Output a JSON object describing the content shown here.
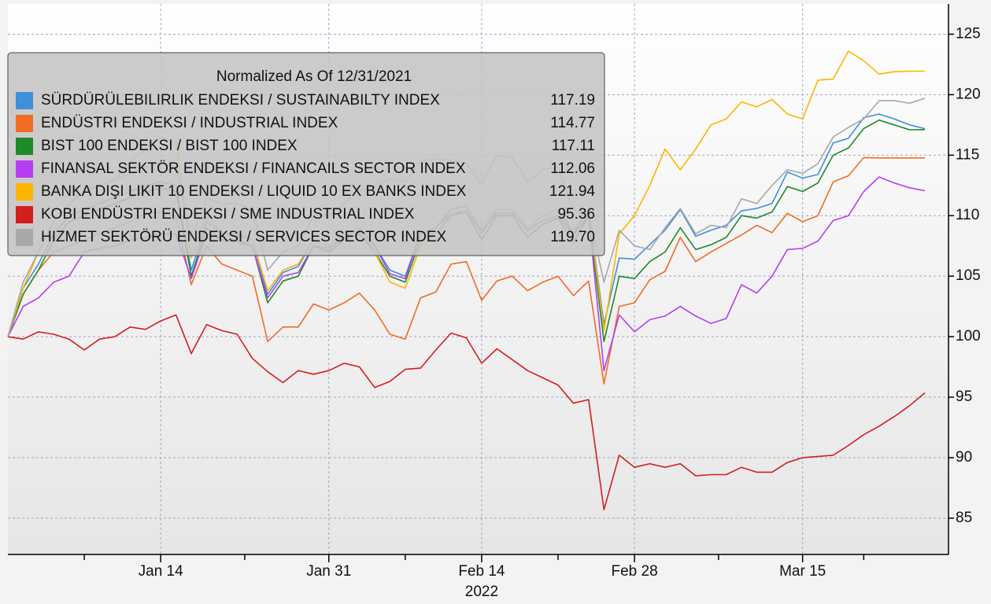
{
  "chart_data": {
    "type": "line",
    "legend_title": "Normalized As Of 12/31/2021",
    "xlabel": "2022",
    "categories": [
      null,
      null,
      null,
      null,
      null,
      null,
      null,
      null,
      null,
      null,
      "Jan 14",
      null,
      null,
      null,
      null,
      null,
      null,
      null,
      null,
      null,
      null,
      "Jan 31",
      null,
      null,
      null,
      null,
      null,
      null,
      null,
      null,
      null,
      "Feb 14",
      null,
      null,
      null,
      null,
      null,
      null,
      null,
      null,
      null,
      "Feb 28",
      null,
      null,
      null,
      null,
      null,
      null,
      null,
      null,
      null,
      null,
      "Mar 15",
      null,
      null,
      null,
      null,
      null,
      null,
      null,
      null
    ],
    "ylim": [
      82,
      127.5
    ],
    "yticks": [
      85,
      90,
      95,
      100,
      105,
      110,
      115,
      120,
      125
    ],
    "grid": true,
    "legend": "upper left",
    "series": [
      {
        "name": "SÜRDÜRÜLEBILIRLIK ENDEKSI / SUSTAINABILTY INDEX",
        "legend_value": "117.19",
        "color": "#3f8fdc",
        "values": [
          100,
          104,
          106,
          108.5,
          110,
          110.5,
          111,
          111.5,
          112,
          112.5,
          112.8,
          112.5,
          105.5,
          109.5,
          108.5,
          108.5,
          108,
          103.5,
          105.3,
          105.8,
          108,
          107.5,
          108.5,
          109,
          107.5,
          105.5,
          105,
          108.5,
          109,
          110.5,
          110.8,
          108.5,
          110.5,
          110.5,
          109,
          110,
          110.5,
          108.5,
          110.5,
          101,
          106.5,
          106.4,
          107.6,
          108.8,
          110.5,
          108.3,
          108.8,
          109.2,
          110.4,
          110.6,
          111,
          113.6,
          113.1,
          113.4,
          116,
          116.4,
          118.1,
          118.4,
          118,
          117.5,
          117.19
        ]
      },
      {
        "name": "ENDÜSTRI ENDEKSI / INDUSTRIAL INDEX",
        "legend_value": "114.77",
        "color": "#f26c22",
        "values": [
          100,
          103.5,
          105.5,
          107,
          107.5,
          108,
          108.5,
          109,
          109.5,
          110.2,
          110.3,
          110,
          104.3,
          107.5,
          106,
          105.5,
          105,
          99.6,
          100.8,
          100.8,
          102.7,
          102.2,
          102.8,
          103.6,
          102.2,
          100.2,
          99.8,
          103.2,
          103.7,
          106,
          106.2,
          103,
          104.6,
          105,
          103.8,
          104.5,
          105,
          103.4,
          104.6,
          96.1,
          102.5,
          102.8,
          104.7,
          105.4,
          108.2,
          106.2,
          107,
          107.7,
          108.4,
          109.2,
          108.6,
          110.2,
          109.5,
          110,
          112.8,
          113.3,
          114.8,
          114.77,
          114.77,
          114.77,
          114.77
        ]
      },
      {
        "name": "BIST 100 ENDEKSI / BIST 100 INDEX",
        "legend_value": "117.11",
        "color": "#1f8a2a",
        "values": [
          100,
          103.5,
          105.5,
          108,
          109.5,
          110,
          110.5,
          111,
          111.5,
          112,
          112.3,
          112,
          105,
          109,
          108,
          108,
          107.5,
          102.8,
          104.6,
          105,
          107.5,
          107,
          108,
          108.5,
          107,
          105,
          104.5,
          108,
          108.5,
          110,
          110.3,
          108,
          110,
          110,
          108.2,
          109.3,
          109.8,
          107.8,
          110,
          99.6,
          105,
          104.8,
          106.2,
          107,
          109,
          107.2,
          107.6,
          108.2,
          110,
          109.8,
          110.3,
          112.4,
          112,
          112.7,
          115,
          115.6,
          117.2,
          117.9,
          117.5,
          117.1,
          117.11
        ]
      },
      {
        "name": "FINANSAL SEKTÖR ENDEKSI / FINANCAILS SECTOR INDEX",
        "legend_value": "112.06",
        "color": "#b53ff0",
        "values": [
          100,
          102.5,
          103.2,
          104.5,
          105,
          107,
          107.3,
          107.5,
          108,
          108.2,
          108.5,
          108.5,
          104.8,
          108.5,
          108,
          107.8,
          107.5,
          103.2,
          105,
          105.3,
          107.5,
          107.3,
          108.2,
          108.8,
          107.5,
          105.2,
          104.8,
          108.5,
          109,
          110.2,
          110.3,
          108.8,
          110.2,
          110.2,
          108.8,
          109.6,
          110,
          108.4,
          110,
          97.2,
          101.8,
          100.4,
          101.4,
          101.7,
          102.5,
          101.7,
          101.1,
          101.5,
          104.3,
          103.6,
          105,
          107.2,
          107.3,
          107.9,
          109.6,
          110,
          112,
          113.2,
          112.7,
          112.3,
          112.06
        ]
      },
      {
        "name": "BANKA DIŞI LIKIT 10 ENDEKSI / LIQUID 10 EX BANKS INDEX",
        "legend_value": "121.94",
        "color": "#ffb400",
        "values": [
          100,
          104,
          107,
          109.5,
          111,
          112,
          112.5,
          113,
          114.5,
          115.5,
          116.5,
          116,
          106.5,
          110,
          108.5,
          108.3,
          108,
          103.8,
          105.5,
          106,
          108,
          107.5,
          108.5,
          109,
          107,
          104.5,
          104,
          107.5,
          108.5,
          110.2,
          110.5,
          109.2,
          110.5,
          110.5,
          109,
          110,
          110.5,
          108.8,
          110.5,
          100.5,
          108.5,
          110,
          112.5,
          115.5,
          113.8,
          115.5,
          117.5,
          118,
          119.4,
          119,
          119.6,
          118.4,
          118,
          121.2,
          121.3,
          123.6,
          122.8,
          121.7,
          121.9,
          121.94,
          121.94
        ]
      },
      {
        "name": "KOBI ENDÜSTRI ENDEKSI / SME INDUSTRIAL INDEX",
        "legend_value": "95.36",
        "color": "#d41e1e",
        "values": [
          100,
          99.8,
          100.4,
          100.2,
          99.8,
          98.9,
          99.8,
          100,
          100.8,
          100.6,
          101.3,
          101.8,
          98.6,
          101,
          100.5,
          100.2,
          98.2,
          97.1,
          96.2,
          97.2,
          96.9,
          97.2,
          97.8,
          97.5,
          95.8,
          96.3,
          97.3,
          97.4,
          98.9,
          100.3,
          99.9,
          97.8,
          99,
          98.1,
          97.2,
          96.6,
          96,
          94.5,
          94.8,
          85.7,
          90.2,
          89.2,
          89.5,
          89.2,
          89.5,
          88.5,
          88.6,
          88.6,
          89.2,
          88.8,
          88.8,
          89.6,
          90,
          90.1,
          90.2,
          91,
          91.9,
          92.6,
          93.4,
          94.3,
          95.36
        ]
      },
      {
        "name": "HIZMET SEKTÖRÜ ENDEKSI / SERVICES SECTOR INDEX",
        "legend_value": "119.70",
        "color": "#a8a8a8",
        "values": [
          100,
          104.5,
          107,
          109.5,
          111,
          112,
          112.5,
          113,
          113.5,
          114,
          114.3,
          114,
          108,
          111.5,
          111,
          111,
          110.5,
          105.5,
          107,
          107.5,
          110,
          110,
          111,
          112,
          112.5,
          113,
          112.8,
          114.5,
          114.7,
          114.6,
          114.3,
          112.6,
          115,
          114.8,
          112.8,
          113.8,
          114,
          110.5,
          110.2,
          104.5,
          108.8,
          107.5,
          107.2,
          109,
          110.6,
          108.5,
          109.2,
          109,
          111.4,
          111,
          112.5,
          113.8,
          113.5,
          114.3,
          116.5,
          117.3,
          118,
          119.5,
          119.5,
          119.3,
          119.7
        ]
      }
    ]
  }
}
